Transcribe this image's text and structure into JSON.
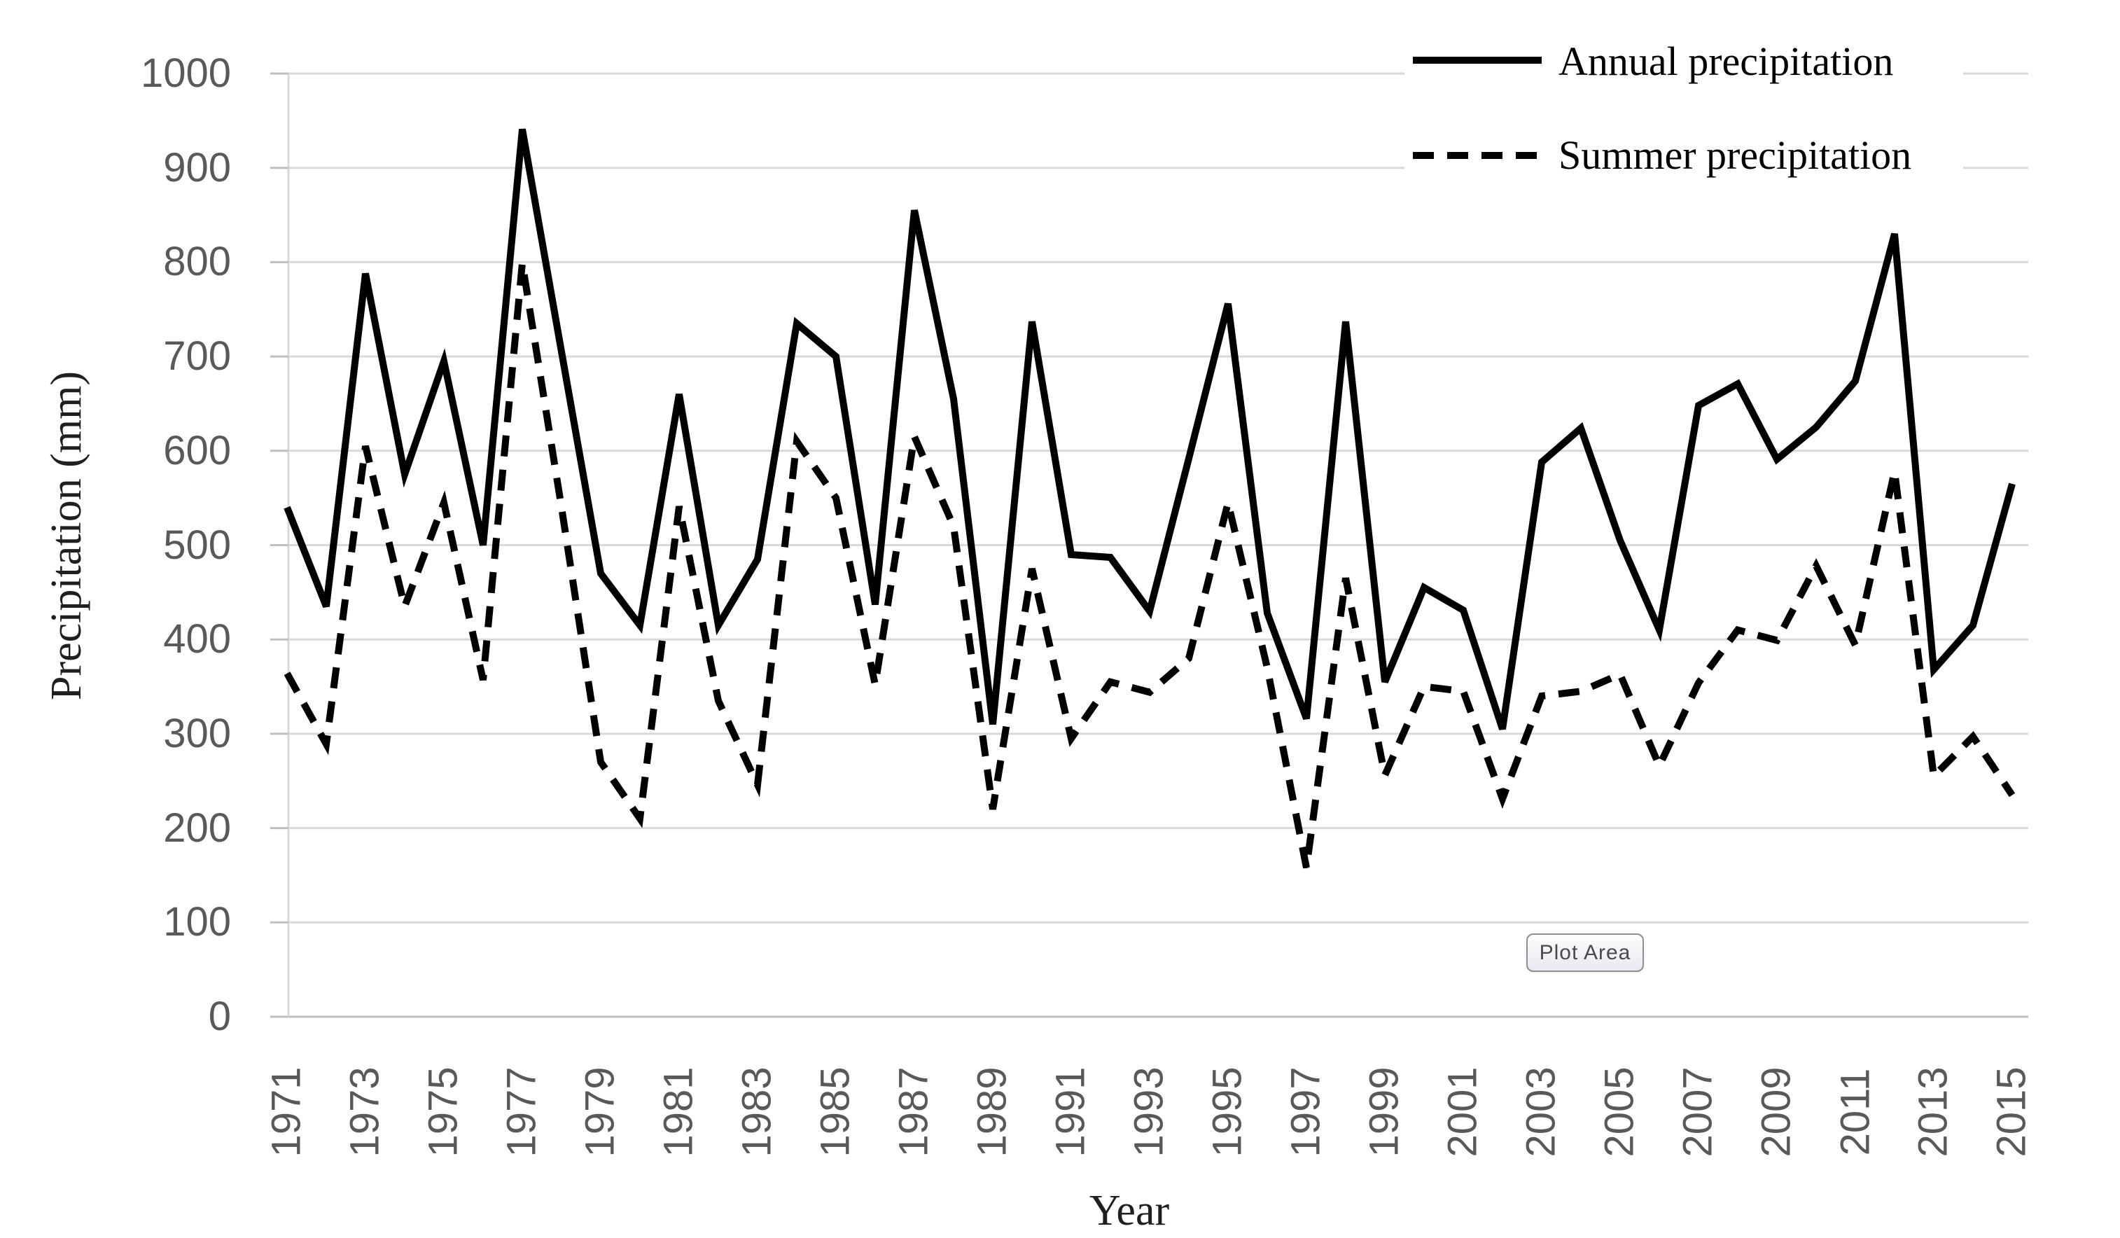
{
  "chart_data": {
    "type": "line",
    "x": [
      1971,
      1972,
      1973,
      1974,
      1975,
      1976,
      1977,
      1978,
      1979,
      1980,
      1981,
      1982,
      1983,
      1984,
      1985,
      1986,
      1987,
      1988,
      1989,
      1990,
      1991,
      1992,
      1993,
      1994,
      1995,
      1996,
      1997,
      1998,
      1999,
      2000,
      2001,
      2002,
      2003,
      2004,
      2005,
      2006,
      2007,
      2008,
      2009,
      2010,
      2011,
      2012,
      2013,
      2014,
      2015
    ],
    "series": [
      {
        "name": "Annual precipitation",
        "style": "solid",
        "values": [
          540,
          435,
          788,
          575,
          695,
          500,
          941,
          705,
          470,
          415,
          660,
          415,
          485,
          735,
          700,
          437,
          855,
          655,
          310,
          737,
          490,
          487,
          430,
          592,
          756,
          428,
          316,
          737,
          355,
          455,
          431,
          305,
          588,
          624,
          505,
          410,
          648,
          671,
          591,
          625,
          674,
          830,
          368,
          415,
          565
        ]
      },
      {
        "name": "Summer precipitation",
        "style": "dashed",
        "values": [
          364,
          289,
          605,
          435,
          545,
          357,
          799,
          540,
          270,
          210,
          541,
          335,
          246,
          610,
          550,
          352,
          615,
          520,
          220,
          475,
          295,
          355,
          344,
          380,
          545,
          370,
          158,
          465,
          256,
          350,
          345,
          231,
          340,
          345,
          363,
          266,
          354,
          410,
          399,
          478,
          394,
          578,
          255,
          297,
          235
        ]
      }
    ],
    "xlabel": "Year",
    "ylabel": "Precipitation (mm)",
    "ylim": [
      0,
      1000
    ],
    "y_ticks": [
      1000,
      900,
      800,
      700,
      600,
      500,
      400,
      300,
      200,
      100,
      0
    ],
    "x_tick_labels": [
      "1971",
      "1973",
      "1975",
      "1977",
      "1979",
      "1981",
      "1983",
      "1985",
      "1987",
      "1989",
      "1991",
      "1993",
      "1995",
      "1997",
      "1999",
      "2001",
      "2003",
      "2005",
      "2007",
      "2009",
      "2011",
      "2013",
      "2015"
    ],
    "grid": true,
    "legend_position": "top-right"
  },
  "tooltip": {
    "label": "Plot Area"
  },
  "colors": {
    "series": "#000000",
    "gridline": "#d9d9d9",
    "axis_line": "#bfbfbf",
    "tick_text": "#595959",
    "title_text": "#1f1f1f",
    "tooltip_border": "#8e8e8e",
    "tooltip_text": "#4a4a4a"
  }
}
